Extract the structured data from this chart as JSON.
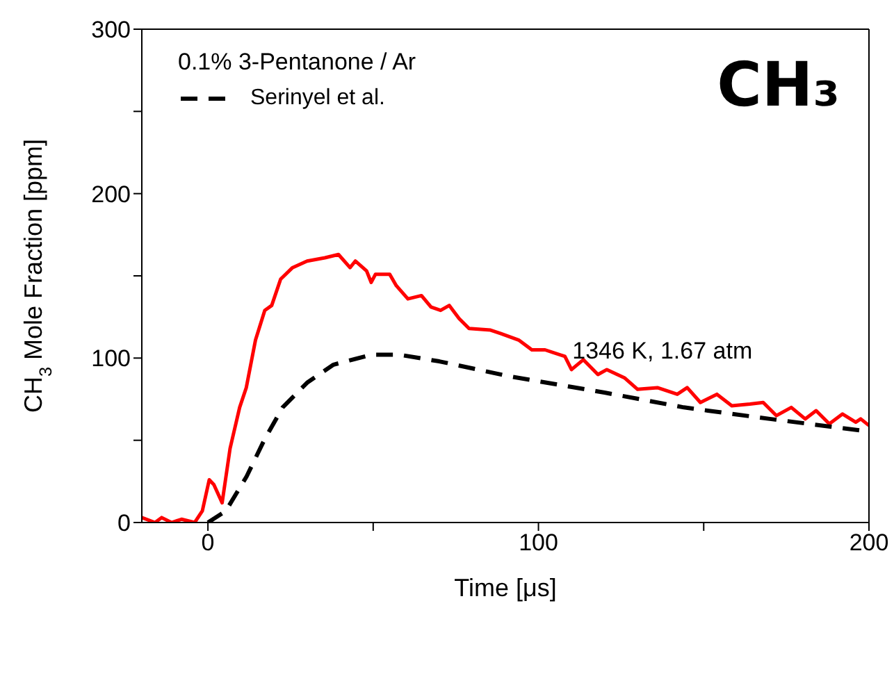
{
  "chart_data": {
    "type": "line",
    "title": "CH₃",
    "xlabel": "Time [μs]",
    "ylabel": "CH$_{3}$ Mole Fraction [ppm]",
    "legend_title": "0.1% 3-Pentanone / Ar",
    "legend": "top left",
    "annotations": [
      "1346 K, 1.67 atm"
    ],
    "xlim": [
      -20,
      200
    ],
    "xticks": [
      0,
      {
        "value": 50,
        "label": null
      },
      100,
      {
        "value": 150,
        "label": null
      },
      200
    ],
    "ylim": [
      0,
      300
    ],
    "yticks": [
      0,
      {
        "value": 50,
        "label": null
      },
      100,
      {
        "value": 150,
        "label": null
      },
      200,
      {
        "value": 250,
        "label": null
      },
      300
    ],
    "series": [
      {
        "color": "#ff0000",
        "line_style": "solid",
        "x": [
          -20,
          -16,
          -14,
          -11,
          -8,
          -4,
          -1.7,
          0.4,
          1.8,
          4.3,
          6.7,
          9.6,
          11.6,
          14.4,
          17.2,
          19.3,
          22,
          25.6,
          30,
          35.4,
          39.5,
          43,
          44.6,
          48,
          49.4,
          50.7,
          55,
          57,
          60.5,
          64.6,
          67.5,
          70.4,
          73,
          76,
          79,
          85.5,
          88.5,
          94,
          98,
          102,
          108,
          110,
          113.6,
          118,
          120.7,
          126,
          130,
          136,
          142,
          145,
          149,
          154,
          158.5,
          164,
          168,
          172,
          176.5,
          180.7,
          184,
          188,
          192,
          196,
          197.5,
          200
        ],
        "values": [
          3,
          0,
          3,
          0,
          2,
          0,
          7,
          26,
          23,
          12,
          45,
          70,
          82,
          111,
          129,
          132,
          148,
          155,
          159,
          161,
          163,
          155,
          159,
          153,
          146,
          151,
          151,
          144,
          136,
          138,
          131,
          129,
          132,
          124,
          118,
          117,
          115,
          111,
          105,
          105,
          101,
          93,
          99,
          90,
          93,
          88,
          81,
          82,
          78,
          82,
          73,
          78,
          71,
          72,
          73,
          65,
          70,
          63,
          68,
          60,
          66,
          61,
          63,
          59
        ]
      },
      {
        "name": "Serinyel et al.",
        "color": "#000000",
        "line_style": "dashed",
        "x": [
          0,
          5.4,
          11.7,
          17,
          22.6,
          30,
          38,
          49.5,
          58,
          70,
          91,
          120,
          144,
          170,
          197.5,
          200
        ],
        "values": [
          0,
          7,
          28,
          50,
          70,
          85,
          96,
          102,
          102,
          98,
          89,
          79,
          70,
          63,
          56,
          55
        ]
      }
    ]
  }
}
